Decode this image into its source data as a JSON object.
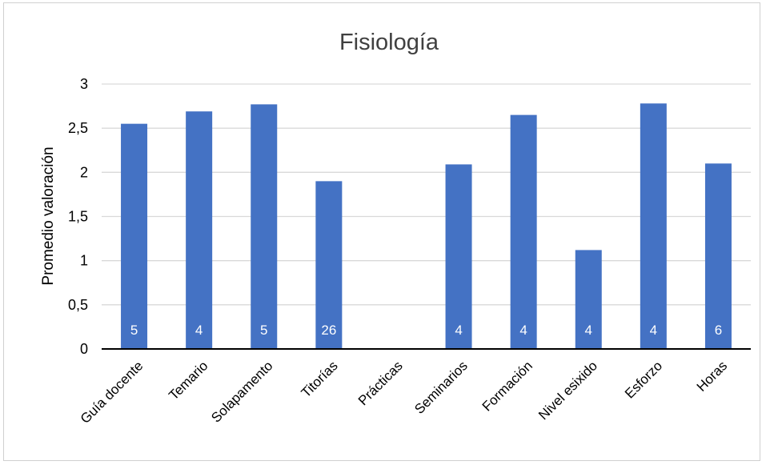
{
  "chart_data": {
    "type": "bar",
    "title": "Fisiología",
    "xlabel": "",
    "ylabel": "Promedio valoración",
    "ylim": [
      0,
      3
    ],
    "yticks": [
      0,
      0.5,
      1,
      1.5,
      2,
      2.5,
      3
    ],
    "ytick_labels": [
      "0",
      "0,5",
      "1",
      "1,5",
      "2",
      "2,5",
      "3"
    ],
    "grid": true,
    "legend": "none",
    "bar_color": "#4472C4",
    "categories": [
      "Guía docente",
      "Temario",
      "Solapamento",
      "Titorías",
      "Prácticas",
      "Seminarios",
      "Formación",
      "Nivel esixido",
      "Esforzo",
      "Horas"
    ],
    "values": [
      2.55,
      2.69,
      2.77,
      1.9,
      null,
      2.09,
      2.65,
      1.12,
      2.78,
      2.1
    ],
    "data_labels": [
      "5",
      "4",
      "5",
      "26",
      "",
      "4",
      "4",
      "4",
      "4",
      "6"
    ]
  }
}
